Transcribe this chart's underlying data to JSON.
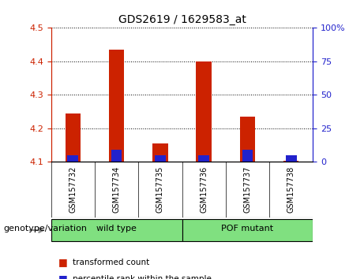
{
  "title": "GDS2619 / 1629583_at",
  "samples": [
    "GSM157732",
    "GSM157734",
    "GSM157735",
    "GSM157736",
    "GSM157737",
    "GSM157738"
  ],
  "red_values": [
    4.245,
    4.435,
    4.155,
    4.4,
    4.235,
    4.102
  ],
  "blue_percentiles": [
    5,
    9,
    5,
    5,
    9,
    5
  ],
  "base": 4.1,
  "ylim_left": [
    4.1,
    4.5
  ],
  "ylim_right": [
    0,
    100
  ],
  "groups": [
    {
      "label": "wild type",
      "start": 0,
      "end": 3
    },
    {
      "label": "POF mutant",
      "start": 3,
      "end": 6
    }
  ],
  "bar_color_red": "#cc2200",
  "bar_color_blue": "#2222cc",
  "bar_width": 0.35,
  "blue_bar_width": 0.25,
  "left_axis_color": "#cc2200",
  "right_axis_color": "#2222cc",
  "bg_xtick": "#c8c8c8",
  "group_color": "#80e080",
  "legend_labels": [
    "transformed count",
    "percentile rank within the sample"
  ],
  "legend_colors": [
    "#cc2200",
    "#2222cc"
  ],
  "yticks_left": [
    4.1,
    4.2,
    4.3,
    4.4,
    4.5
  ],
  "yticks_right": [
    0,
    25,
    50,
    75,
    100
  ],
  "genotype_label": "genotype/variation"
}
